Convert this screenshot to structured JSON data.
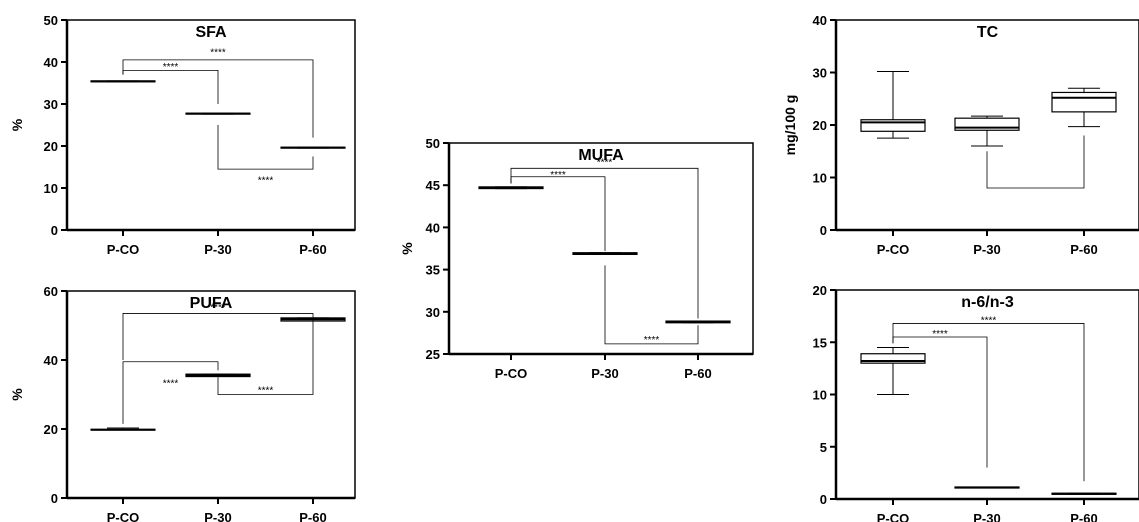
{
  "chart_data": [
    {
      "id": "sfa",
      "type": "box",
      "title": "SFA",
      "ylabel": "%",
      "ylim": [
        0,
        50
      ],
      "yticks": [
        0,
        10,
        20,
        30,
        40,
        50
      ],
      "categories": [
        "P-CO",
        "P-30",
        "P-60"
      ],
      "boxes": [
        {
          "min": 35.3,
          "q1": 35.3,
          "median": 35.4,
          "q3": 35.5,
          "max": 35.5
        },
        {
          "min": 27.6,
          "q1": 27.6,
          "median": 27.7,
          "q3": 27.8,
          "max": 27.8
        },
        {
          "min": 19.5,
          "q1": 19.5,
          "median": 19.6,
          "q3": 19.7,
          "max": 19.7
        }
      ],
      "significance": [
        {
          "from": 0,
          "to": 1,
          "label": "****",
          "side": "above",
          "bracket_y": 38,
          "label_y": 39,
          "left_end": 37,
          "right_end": 30
        },
        {
          "from": 0,
          "to": 2,
          "label": "****",
          "side": "above",
          "bracket_y": 40.5,
          "label_y": 42.5,
          "left_end": 37,
          "right_end": 22
        },
        {
          "from": 1,
          "to": 2,
          "label": "****",
          "side": "below",
          "bracket_y": 14.5,
          "label_y": 12,
          "left_end": 25,
          "right_end": 17.5
        }
      ]
    },
    {
      "id": "pufa",
      "type": "box",
      "title": "PUFA",
      "ylabel": "%",
      "ylim": [
        0,
        60
      ],
      "yticks": [
        0,
        20,
        40,
        60
      ],
      "categories": [
        "P-CO",
        "P-30",
        "P-60"
      ],
      "boxes": [
        {
          "min": 19.7,
          "q1": 19.7,
          "median": 19.8,
          "q3": 19.9,
          "max": 20.3
        },
        {
          "min": 35.2,
          "q1": 35.2,
          "median": 35.6,
          "q3": 35.9,
          "max": 35.9
        },
        {
          "min": 51.3,
          "q1": 51.3,
          "median": 51.8,
          "q3": 52.2,
          "max": 52.2
        }
      ],
      "significance": [
        {
          "from": 0,
          "to": 1,
          "label": "****",
          "side": "above",
          "bracket_y": 39.5,
          "label_y": 33.5,
          "left_end": 21.5,
          "right_end": 37
        },
        {
          "from": 0,
          "to": 2,
          "label": "****",
          "side": "above",
          "bracket_y": 53.5,
          "label_y": 55.5,
          "left_end": 40,
          "right_end": 51
        },
        {
          "from": 1,
          "to": 2,
          "label": "****",
          "side": "below",
          "bracket_y": 30,
          "label_y": 31.5,
          "left_end": 35,
          "right_end": 51
        }
      ]
    },
    {
      "id": "mufa",
      "type": "box",
      "title": "MUFA",
      "ylabel": "%",
      "ylim": [
        25,
        50
      ],
      "yticks": [
        25,
        30,
        35,
        40,
        45,
        50
      ],
      "categories": [
        "P-CO",
        "P-30",
        "P-60"
      ],
      "boxes": [
        {
          "min": 44.6,
          "q1": 44.6,
          "median": 44.7,
          "q3": 44.8,
          "max": 44.8
        },
        {
          "min": 36.8,
          "q1": 36.8,
          "median": 36.9,
          "q3": 37.0,
          "max": 37.0
        },
        {
          "min": 28.7,
          "q1": 28.7,
          "median": 28.8,
          "q3": 28.9,
          "max": 28.9
        }
      ],
      "significance": [
        {
          "from": 0,
          "to": 1,
          "label": "****",
          "side": "above",
          "bracket_y": 46,
          "label_y": 46.3,
          "left_end": 45.2,
          "right_end": 37.2
        },
        {
          "from": 0,
          "to": 2,
          "label": "****",
          "side": "above",
          "bracket_y": 47,
          "label_y": 47.8,
          "left_end": 45.2,
          "right_end": 29.2
        },
        {
          "from": 1,
          "to": 2,
          "label": "****",
          "side": "below",
          "bracket_y": 26.2,
          "label_y": 26.8,
          "left_end": 35.5,
          "right_end": 28.4
        }
      ]
    },
    {
      "id": "tc",
      "type": "box",
      "title": "TC",
      "ylabel": "mg/100 g",
      "ylim": [
        0,
        40
      ],
      "yticks": [
        0,
        10,
        20,
        30,
        40
      ],
      "categories": [
        "P-CO",
        "P-30",
        "P-60"
      ],
      "boxes": [
        {
          "min": 17.5,
          "q1": 18.8,
          "median": 20.5,
          "q3": 21.0,
          "max": 30.2
        },
        {
          "min": 16.0,
          "q1": 19.0,
          "median": 19.5,
          "q3": 21.3,
          "max": 21.7
        },
        {
          "min": 19.7,
          "q1": 22.5,
          "median": 25.2,
          "q3": 26.2,
          "max": 27.0
        }
      ],
      "significance": [
        {
          "from": 1,
          "to": 2,
          "label": "",
          "side": "below",
          "bracket_y": 8,
          "label_y": 6,
          "left_end": 15,
          "right_end": 18
        }
      ]
    },
    {
      "id": "n6n3",
      "type": "box",
      "title": "n-6/n-3",
      "ylabel": "",
      "ylim": [
        0,
        20
      ],
      "yticks": [
        0,
        5,
        10,
        15,
        20
      ],
      "categories": [
        "P-CO",
        "P-30",
        "P-60"
      ],
      "boxes": [
        {
          "min": 10.0,
          "q1": 13.0,
          "median": 13.2,
          "q3": 13.9,
          "max": 14.5
        },
        {
          "min": 1.05,
          "q1": 1.05,
          "median": 1.1,
          "q3": 1.15,
          "max": 1.15
        },
        {
          "min": 0.45,
          "q1": 0.45,
          "median": 0.5,
          "q3": 0.55,
          "max": 0.55
        }
      ],
      "significance": [
        {
          "from": 0,
          "to": 1,
          "label": "****",
          "side": "above",
          "bracket_y": 15.5,
          "label_y": 15.9,
          "left_end": 14.9,
          "right_end": 3
        },
        {
          "from": 0,
          "to": 2,
          "label": "****",
          "side": "above",
          "bracket_y": 16.8,
          "label_y": 17.2,
          "left_end": 14.9,
          "right_end": 1.7
        }
      ]
    }
  ]
}
